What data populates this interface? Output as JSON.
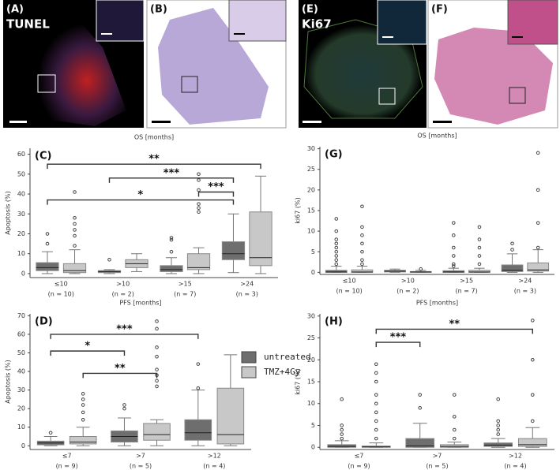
{
  "panels": [
    {
      "label": "(A)",
      "stain": "TUNEL"
    },
    {
      "label": "(B)"
    },
    {
      "label": "(E)",
      "stain": "Ki67"
    },
    {
      "label": "(F)"
    }
  ],
  "chart_data": [
    {
      "type": "box",
      "panel": "(C)",
      "title": "OS [months]",
      "ylabel": "Apoptosis (%)",
      "categories": [
        "≤10",
        ">10",
        ">15",
        ">24"
      ],
      "n_labels": [
        "(n = 10)",
        "(n = 2)",
        "(n = 7)",
        "(n = 3)"
      ],
      "ylim": [
        -2,
        63
      ],
      "yticks": [
        0,
        10,
        20,
        30,
        40,
        50,
        60
      ],
      "series": [
        {
          "name": "untreated",
          "color": "#6e6e6e",
          "min": [
            0,
            0,
            0,
            0.5
          ],
          "q1": [
            1.5,
            0.5,
            1,
            7
          ],
          "median": [
            3,
            1,
            2,
            10
          ],
          "q3": [
            5.5,
            1.5,
            4,
            16
          ],
          "max": [
            11,
            2,
            8,
            30
          ],
          "outliers": [
            [
              15,
              20
            ],
            [
              7
            ],
            [
              11,
              17,
              18
            ],
            []
          ]
        },
        {
          "name": "TMZ+4Gy",
          "color": "#c8c8c8",
          "min": [
            0,
            1,
            0,
            0
          ],
          "q1": [
            0.5,
            3,
            2,
            4
          ],
          "median": [
            1.5,
            5,
            3,
            8
          ],
          "q3": [
            5,
            7,
            10,
            31
          ],
          "max": [
            12,
            10,
            13,
            49
          ],
          "outliers": [
            [
              14,
              19,
              22,
              25,
              28,
              41
            ],
            [],
            [
              31,
              33,
              35,
              42,
              47,
              50
            ],
            []
          ]
        }
      ],
      "annotations": [
        {
          "text": "**",
          "from": [
            0,
            0
          ],
          "to": [
            3,
            1
          ],
          "y": 55
        },
        {
          "text": "***",
          "from": [
            1,
            0
          ],
          "to": [
            3,
            0
          ],
          "y": 48
        },
        {
          "text": "***",
          "from": [
            2,
            1
          ],
          "to": [
            3,
            0
          ],
          "y": 41
        },
        {
          "text": "*",
          "from": [
            0,
            0
          ],
          "to": [
            3,
            0
          ],
          "y": 37
        }
      ]
    },
    {
      "type": "box",
      "panel": "(D)",
      "title": "PFS [months]",
      "ylabel": "Apoptosis (%)",
      "categories": [
        "≤7",
        ">7",
        ">12"
      ],
      "n_labels": [
        "(n = 9)",
        "(n = 5)",
        "(n = 4)"
      ],
      "ylim": [
        -2,
        71
      ],
      "yticks": [
        0,
        10,
        20,
        30,
        40,
        50,
        60,
        70
      ],
      "series": [
        {
          "name": "untreated",
          "color": "#6e6e6e",
          "min": [
            0,
            0,
            0
          ],
          "q1": [
            0.5,
            2,
            3
          ],
          "median": [
            1.5,
            5,
            7
          ],
          "q3": [
            2.5,
            8,
            14
          ],
          "max": [
            5,
            15,
            30
          ],
          "outliers": [
            [
              7
            ],
            [
              20,
              22
            ],
            [
              31,
              44
            ]
          ]
        },
        {
          "name": "TMZ+4Gy",
          "color": "#c8c8c8",
          "min": [
            0,
            0,
            0
          ],
          "q1": [
            1,
            3,
            1
          ],
          "median": [
            2,
            6,
            6
          ],
          "q3": [
            5,
            12,
            31
          ],
          "max": [
            10,
            14,
            49
          ],
          "outliers": [
            [
              14,
              18,
              22,
              25,
              28
            ],
            [
              32,
              35,
              38,
              41,
              48,
              53,
              63,
              67
            ],
            []
          ]
        }
      ],
      "annotations": [
        {
          "text": "***",
          "from": [
            0,
            0
          ],
          "to": [
            2,
            0
          ],
          "y": 60
        },
        {
          "text": "*",
          "from": [
            0,
            0
          ],
          "to": [
            1,
            0
          ],
          "y": 51
        },
        {
          "text": "**",
          "from": [
            0,
            1
          ],
          "to": [
            1,
            1
          ],
          "y": 39
        }
      ]
    },
    {
      "type": "box",
      "panel": "(G)",
      "title": "OS [months]",
      "ylabel": "ki67 (%)",
      "categories": [
        "≤10",
        ">10",
        ">15",
        ">24"
      ],
      "n_labels": [
        "(n = 10)",
        "(n = 2)",
        "(n = 7)",
        "(n = 3)"
      ],
      "ylim": [
        -0.5,
        30.5
      ],
      "yticks": [
        0,
        5,
        10,
        15,
        20,
        25,
        30
      ],
      "series": [
        {
          "name": "untreated",
          "color": "#6e6e6e",
          "min": [
            0,
            0,
            0,
            0
          ],
          "q1": [
            0,
            0.1,
            0,
            0.2
          ],
          "median": [
            0.1,
            0.3,
            0.1,
            0.5
          ],
          "q3": [
            0.5,
            0.5,
            0.4,
            1.8
          ],
          "max": [
            1.5,
            0.8,
            1,
            4.5
          ],
          "outliers": [
            [
              2,
              3,
              4,
              5,
              6,
              7,
              8,
              10,
              13
            ],
            [],
            [
              1.5,
              2,
              4,
              6,
              9,
              12
            ],
            [
              5.5,
              7
            ]
          ]
        },
        {
          "name": "TMZ+4Gy",
          "color": "#c8c8c8",
          "min": [
            0,
            0,
            0,
            0
          ],
          "q1": [
            0,
            0,
            0,
            0.3
          ],
          "median": [
            0.1,
            0.1,
            0.1,
            0.6
          ],
          "q3": [
            0.6,
            0.2,
            0.5,
            2.3
          ],
          "max": [
            1.5,
            0.5,
            1,
            5.5
          ],
          "outliers": [
            [
              2,
              3,
              5,
              7,
              9,
              11,
              16
            ],
            [
              0.8
            ],
            [
              2,
              4,
              6,
              8,
              11
            ],
            [
              6,
              12,
              20,
              29
            ]
          ]
        }
      ],
      "annotations": []
    },
    {
      "type": "box",
      "panel": "(H)",
      "title": "PFS [months]",
      "ylabel": "ki67 (%)",
      "categories": [
        "≤7",
        ">7",
        ">12"
      ],
      "n_labels": [
        "(n = 9)",
        "(n = 5)",
        "(n = 4)"
      ],
      "ylim": [
        -0.5,
        30.5
      ],
      "yticks": [
        0,
        5,
        10,
        15,
        20,
        25,
        30
      ],
      "series": [
        {
          "name": "untreated",
          "color": "#6e6e6e",
          "min": [
            0,
            0,
            0
          ],
          "q1": [
            0,
            0,
            0.2
          ],
          "median": [
            0.2,
            0.3,
            0.5
          ],
          "q3": [
            0.6,
            2,
            1
          ],
          "max": [
            1.5,
            5.5,
            2
          ],
          "outliers": [
            [
              2,
              3,
              4,
              5,
              11
            ],
            [
              9,
              12
            ],
            [
              3,
              4,
              5,
              6,
              11
            ]
          ]
        },
        {
          "name": "TMZ+4Gy",
          "color": "#c8c8c8",
          "min": [
            0,
            0,
            0
          ],
          "q1": [
            0,
            0,
            0.2
          ],
          "median": [
            0.1,
            0.2,
            0.6
          ],
          "q3": [
            0.3,
            0.6,
            2
          ],
          "max": [
            1,
            1.2,
            4.5
          ],
          "outliers": [
            [
              2,
              4,
              6,
              8,
              10,
              12,
              15,
              17,
              19
            ],
            [
              2,
              4,
              7,
              12
            ],
            [
              6,
              12,
              20,
              29
            ]
          ]
        }
      ],
      "annotations": [
        {
          "text": "***",
          "from": [
            0,
            1
          ],
          "to": [
            1,
            0
          ],
          "y": 24
        },
        {
          "text": "**",
          "from": [
            0,
            1
          ],
          "to": [
            2,
            1
          ],
          "y": 27
        }
      ]
    }
  ]
}
